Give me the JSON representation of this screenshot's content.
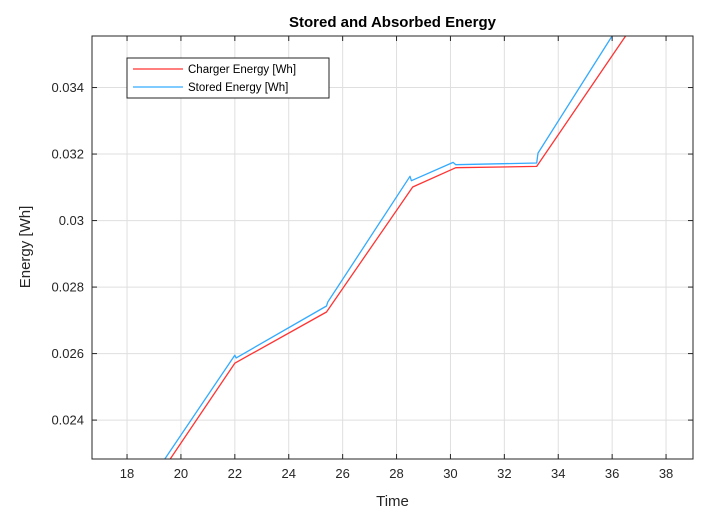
{
  "chart_data": {
    "type": "line",
    "title": "Stored and Absorbed Energy",
    "xlabel": "Time",
    "ylabel": "Energy [Wh]",
    "xlim": [
      16.7,
      39.0
    ],
    "ylim": [
      0.02283,
      0.03555
    ],
    "xticks": [
      18,
      20,
      22,
      24,
      26,
      28,
      30,
      32,
      34,
      36,
      38
    ],
    "xtick_labels": [
      "18",
      "20",
      "22",
      "24",
      "26",
      "28",
      "30",
      "32",
      "34",
      "36",
      "38"
    ],
    "yticks": [
      0.024,
      0.026,
      0.028,
      0.03,
      0.032,
      0.034
    ],
    "ytick_labels": [
      "0.024",
      "0.026",
      "0.028",
      "0.03",
      "0.032",
      "0.034"
    ],
    "grid": true,
    "legend_position": "top-left",
    "series": [
      {
        "name": "Charger Energy [Wh]",
        "color": "#ff3333",
        "x": [
          19.6,
          22.0,
          25.4,
          28.6,
          30.2,
          33.2,
          36.5
        ],
        "y": [
          0.02283,
          0.02571,
          0.02725,
          0.03101,
          0.03159,
          0.03163,
          0.03555
        ]
      },
      {
        "name": "Stored Energy [Wh]",
        "color": "#33aaff",
        "x": [
          19.4,
          22.0,
          22.05,
          25.4,
          25.45,
          28.5,
          28.55,
          30.1,
          30.2,
          33.2,
          33.25,
          36.0
        ],
        "y": [
          0.02283,
          0.02595,
          0.02587,
          0.02743,
          0.02755,
          0.03133,
          0.0312,
          0.03175,
          0.03168,
          0.03173,
          0.03203,
          0.03555
        ]
      }
    ]
  }
}
